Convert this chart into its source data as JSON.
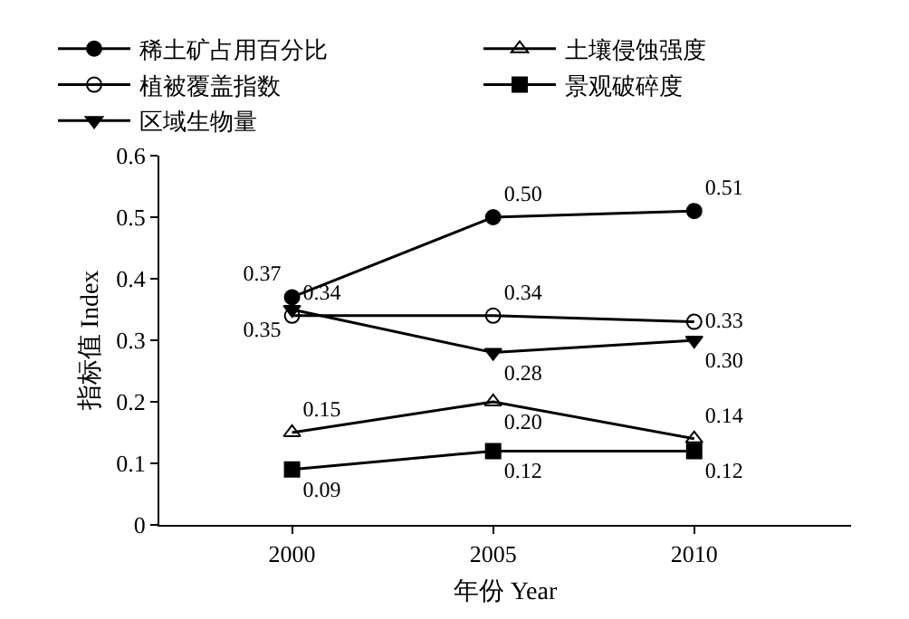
{
  "chart_data": {
    "type": "line",
    "xlabel": "年份 Year",
    "ylabel": "指标值 Index",
    "x": [
      2000,
      2005,
      2010
    ],
    "xlim": [
      1996.7,
      2013.9
    ],
    "xticks": [
      2000,
      2005,
      2010
    ],
    "ylim": [
      0,
      0.6
    ],
    "yticks": [
      0,
      0.1,
      0.2,
      0.3,
      0.4,
      0.5,
      0.6
    ],
    "grid": false,
    "legend": "top",
    "line_style": "solid",
    "series": [
      {
        "name": "稀土矿占用百分比",
        "color": "#000000",
        "marker": "circle",
        "values": [
          0.37,
          0.5,
          0.51
        ],
        "value_labels": [
          "0.37",
          "0.50",
          "0.51"
        ]
      },
      {
        "name": "植被覆盖指数",
        "color": "#000000",
        "marker": "circle-open",
        "values": [
          0.34,
          0.34,
          0.33
        ],
        "value_labels": [
          "0.34",
          "0.34",
          "0.33"
        ]
      },
      {
        "name": "区域生物量",
        "color": "#000000",
        "marker": "triangle",
        "values": [
          0.35,
          0.28,
          0.3
        ],
        "value_labels": [
          "0.35",
          "0.28",
          "0.30"
        ]
      },
      {
        "name": "土壤侵蚀强度",
        "color": "#000000",
        "marker": "triangle-open",
        "values": [
          0.15,
          0.2,
          0.14
        ],
        "value_labels": [
          "0.15",
          "0.20",
          "0.14"
        ]
      },
      {
        "name": "景观破碎度",
        "color": "#000000",
        "marker": "square",
        "values": [
          0.09,
          0.12,
          0.12
        ],
        "value_labels": [
          "0.09",
          "0.12",
          "0.12"
        ]
      }
    ]
  }
}
